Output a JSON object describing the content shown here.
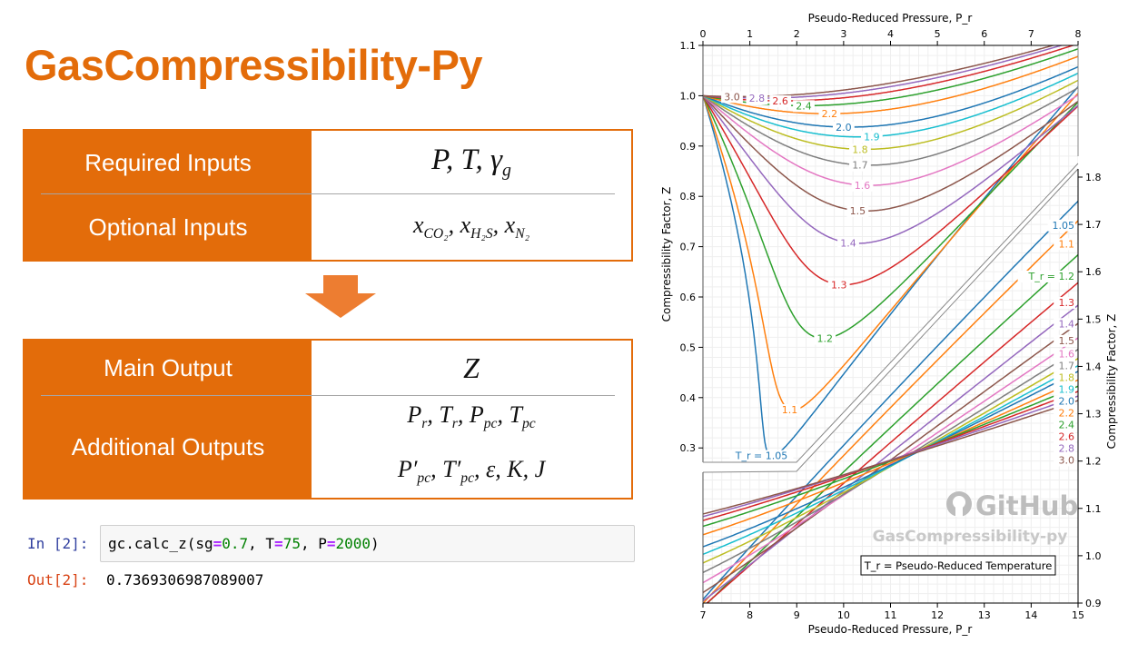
{
  "title": "GasCompressibility-Py",
  "inputs": {
    "required_label": "Required Inputs",
    "required": [
      {
        "base": "P"
      },
      {
        "base": "T"
      },
      {
        "base": "γ",
        "sub": "g"
      }
    ],
    "optional_label": "Optional Inputs",
    "optional": [
      {
        "base": "x",
        "sub": "CO₂"
      },
      {
        "base": "x",
        "sub": "H₂S"
      },
      {
        "base": "x",
        "sub": "N₂"
      }
    ]
  },
  "outputs": {
    "main_label": "Main Output",
    "main": "Z",
    "additional_label": "Additional Outputs",
    "additional_line1": [
      {
        "base": "P",
        "sub": "r"
      },
      {
        "base": "T",
        "sub": "r"
      },
      {
        "base": "P",
        "sub": "pc"
      },
      {
        "base": "T",
        "sub": "pc"
      }
    ],
    "additional_line2": [
      {
        "base": "P′",
        "sub": "pc"
      },
      {
        "base": "T′",
        "sub": "pc"
      },
      {
        "base": "ε"
      },
      {
        "base": "K"
      },
      {
        "base": "J"
      }
    ]
  },
  "code": {
    "in_prompt": "In [2]:",
    "in_parts": [
      "gc.calc_z(sg",
      "=",
      "0.7",
      ", T",
      "=",
      "75",
      ", P",
      "=",
      "2000",
      ")"
    ],
    "out_prompt": "Out[2]:",
    "out_value": "0.7369306987089007"
  },
  "colors": {
    "accent": "#e36c0a",
    "arrow": "#ed7d31"
  },
  "chart_data": {
    "type": "line",
    "panels": [
      {
        "name": "low-pressure",
        "xlabel": "Pseudo-Reduced Pressure, P_r",
        "ylabel": "Compressibility Factor, Z",
        "xlim": [
          0,
          8
        ],
        "ylim": [
          0.3,
          1.1
        ],
        "xticks": [
          "0",
          "1",
          "2",
          "3",
          "4",
          "5",
          "6",
          "7",
          "8"
        ],
        "yticks": [
          "0.3",
          "0.4",
          "0.5",
          "0.6",
          "0.7",
          "0.8",
          "0.9",
          "1.0",
          "1.1"
        ]
      },
      {
        "name": "high-pressure",
        "xlabel": "Pseudo-Reduced Pressure, P_r",
        "ylabel": "Compressibility Factor, Z",
        "xlim": [
          7,
          15
        ],
        "ylim": [
          0.9,
          1.8
        ],
        "xticks": [
          "7",
          "8",
          "9",
          "10",
          "11",
          "12",
          "13",
          "14",
          "15"
        ],
        "yticks": [
          "0.9",
          "1.0",
          "1.1",
          "1.2",
          "1.3",
          "1.4",
          "1.5",
          "1.6",
          "1.7",
          "1.8"
        ]
      }
    ],
    "series": [
      {
        "tr": 1.05,
        "label": "T_r = 1.05",
        "right_label": "1.05",
        "color": "#1f77b4"
      },
      {
        "tr": 1.1,
        "label": "1.1",
        "right_label": "1.1",
        "color": "#ff7f0e"
      },
      {
        "tr": 1.2,
        "label": "1.2",
        "right_label": "T_r = 1.2",
        "color": "#2ca02c"
      },
      {
        "tr": 1.3,
        "label": "1.3",
        "right_label": "1.3",
        "color": "#d62728"
      },
      {
        "tr": 1.4,
        "label": "1.4",
        "right_label": "1.4",
        "color": "#9467bd"
      },
      {
        "tr": 1.5,
        "label": "1.5",
        "right_label": "1.5",
        "color": "#8c564b"
      },
      {
        "tr": 1.6,
        "label": "1.6",
        "right_label": "1.6",
        "color": "#e377c2"
      },
      {
        "tr": 1.7,
        "label": "1.7",
        "right_label": "1.7",
        "color": "#7f7f7f"
      },
      {
        "tr": 1.8,
        "label": "1.8",
        "right_label": "1.8",
        "color": "#bcbd22"
      },
      {
        "tr": 1.9,
        "label": "1.9",
        "right_label": "1.9",
        "color": "#17becf"
      },
      {
        "tr": 2.0,
        "label": "2.0",
        "right_label": "2.0",
        "color": "#1f77b4"
      },
      {
        "tr": 2.2,
        "label": "2.2",
        "right_label": "2.2",
        "color": "#ff7f0e"
      },
      {
        "tr": 2.4,
        "label": "2.4",
        "right_label": "2.4",
        "color": "#2ca02c"
      },
      {
        "tr": 2.6,
        "label": "2.6",
        "right_label": "2.6",
        "color": "#d62728"
      },
      {
        "tr": 2.8,
        "label": "2.8",
        "right_label": "2.8",
        "color": "#9467bd"
      },
      {
        "tr": 3.0,
        "label": "3.0",
        "right_label": "3.0",
        "color": "#8c564b"
      }
    ],
    "legend": "T_r = Pseudo-Reduced Temperature",
    "grid": true,
    "watermark": {
      "brand": "GitHub",
      "repo": "GasCompressibility-py"
    }
  }
}
